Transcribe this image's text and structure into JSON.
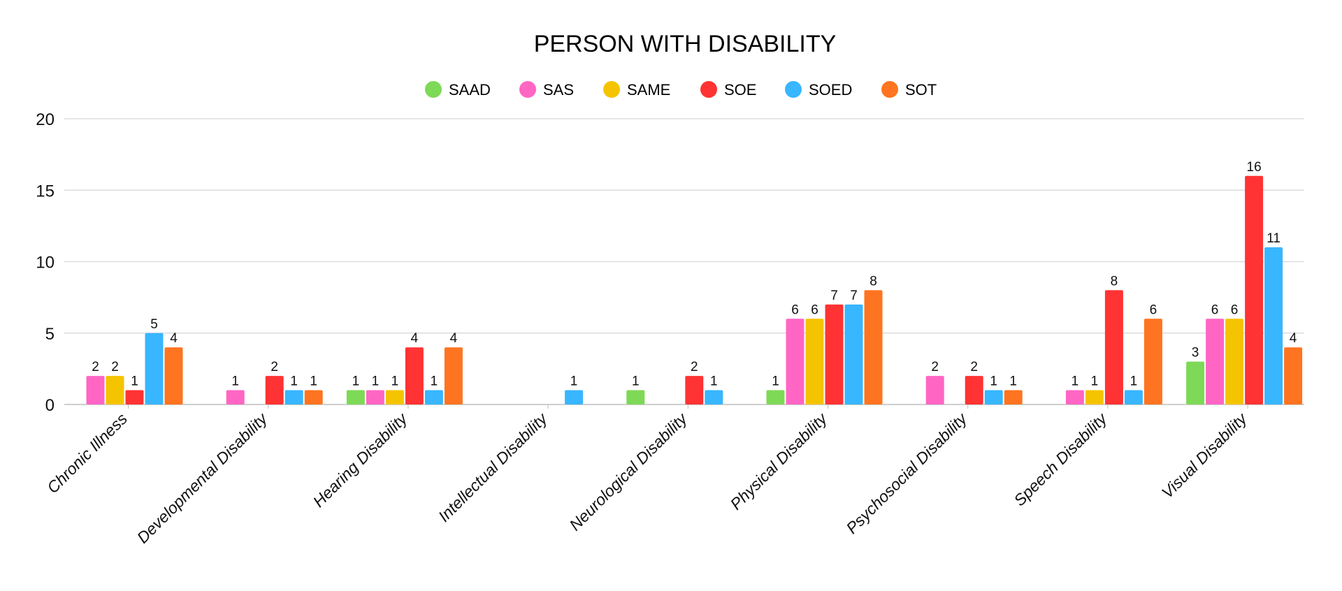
{
  "chart_data": {
    "type": "bar",
    "title": "PERSON WITH DISABILITY",
    "xlabel": "",
    "ylabel": "",
    "ylim": [
      0,
      20
    ],
    "yticks": [
      0,
      5,
      10,
      15,
      20
    ],
    "grid": true,
    "legend_position": "top",
    "data_labels": true,
    "categories": [
      "Chronic Illness",
      "Developmental Disability",
      "Hearing Disability",
      "Intellectual Disability",
      "Neurological Disability",
      "Physical Disability",
      "Psychosocial Disability",
      "Speech Disability",
      "Visual Disability"
    ],
    "series": [
      {
        "name": "SAAD",
        "color": "#7ED957",
        "values": [
          0,
          0,
          1,
          0,
          1,
          1,
          0,
          0,
          3
        ]
      },
      {
        "name": "SAS",
        "color": "#FF66C4",
        "values": [
          2,
          1,
          1,
          0,
          0,
          6,
          2,
          1,
          6
        ]
      },
      {
        "name": "SAME",
        "color": "#F5C400",
        "values": [
          2,
          0,
          1,
          0,
          0,
          6,
          0,
          1,
          6
        ]
      },
      {
        "name": "SOE",
        "color": "#FF3333",
        "values": [
          1,
          2,
          4,
          0,
          2,
          7,
          2,
          8,
          16
        ]
      },
      {
        "name": "SOED",
        "color": "#38B6FF",
        "values": [
          5,
          1,
          1,
          1,
          1,
          7,
          1,
          1,
          11
        ]
      },
      {
        "name": "SOT",
        "color": "#FF7420",
        "values": [
          4,
          1,
          4,
          0,
          0,
          8,
          1,
          6,
          4
        ]
      }
    ]
  }
}
